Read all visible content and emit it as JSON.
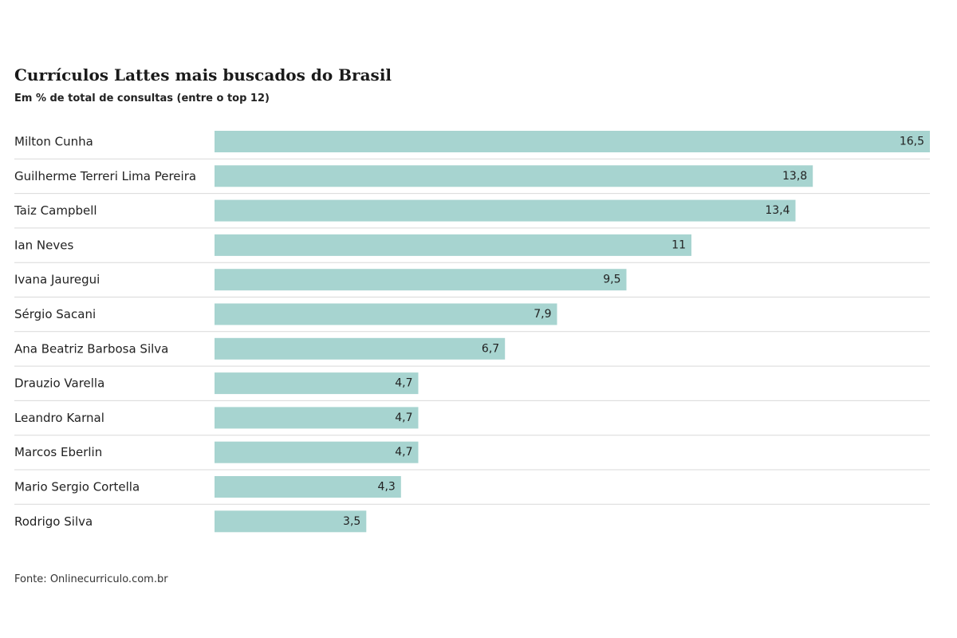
{
  "chart_data": {
    "type": "bar",
    "orientation": "horizontal",
    "title": "Currículos Lattes mais buscados do Brasil",
    "subtitle": "Em % de total de consultas (entre o top 12)",
    "categories": [
      "Milton Cunha",
      "Guilherme Terreri Lima Pereira",
      "Taiz Campbell",
      "Ian Neves",
      "Ivana Jauregui",
      "Sérgio Sacani",
      "Ana Beatriz Barbosa Silva",
      "Drauzio Varella",
      "Leandro Karnal",
      "Marcos Eberlin",
      "Mario Sergio Cortella",
      "Rodrigo Silva"
    ],
    "values": [
      16.5,
      13.8,
      13.4,
      11,
      9.5,
      7.9,
      6.7,
      4.7,
      4.7,
      4.7,
      4.3,
      3.5
    ],
    "value_labels": [
      "16,5",
      "13,8",
      "13,4",
      "11",
      "9,5",
      "7,9",
      "6,7",
      "4,7",
      "4,7",
      "4,7",
      "4,3",
      "3,5"
    ],
    "xlim": [
      0,
      16.5
    ],
    "xlabel": "",
    "ylabel": "",
    "grid": false,
    "bar_color": "#a7d4d0",
    "separator_color": "#d9d9d9",
    "source": "Fonte: Onlinecurriculo.com.br"
  }
}
